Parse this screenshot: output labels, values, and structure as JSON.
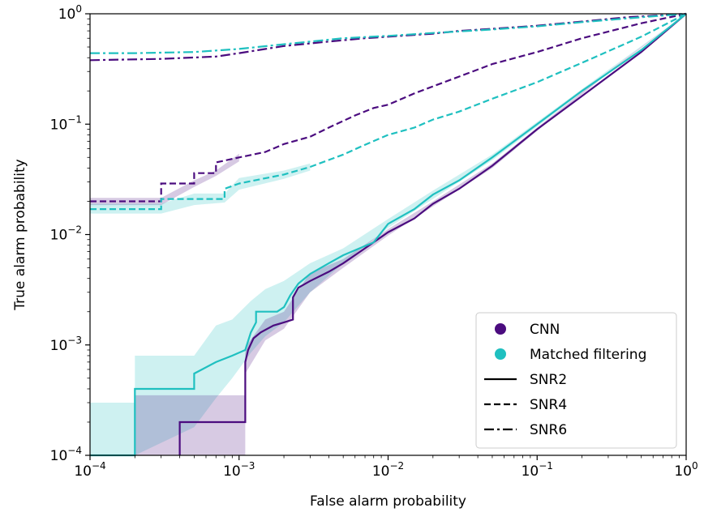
{
  "chart_data": {
    "type": "line",
    "xscale": "log",
    "yscale": "log",
    "xlim": [
      0.0001,
      1
    ],
    "ylim": [
      0.0001,
      1
    ],
    "xlabel": "False alarm probability",
    "ylabel": "True alarm probability",
    "xticks": [
      {
        "value": 0.0001,
        "base": "10",
        "exp": "−4"
      },
      {
        "value": 0.001,
        "base": "10",
        "exp": "−3"
      },
      {
        "value": 0.01,
        "base": "10",
        "exp": "−2"
      },
      {
        "value": 0.1,
        "base": "10",
        "exp": "−1"
      },
      {
        "value": 1,
        "base": "10",
        "exp": "0"
      }
    ],
    "yticks": [
      {
        "value": 0.0001,
        "base": "10",
        "exp": "−4"
      },
      {
        "value": 0.001,
        "base": "10",
        "exp": "−3"
      },
      {
        "value": 0.01,
        "base": "10",
        "exp": "−2"
      },
      {
        "value": 0.1,
        "base": "10",
        "exp": "−1"
      },
      {
        "value": 1,
        "base": "10",
        "exp": "0"
      }
    ],
    "colors": {
      "CNN": "#4b0c7f",
      "Matched filtering": "#1fc0c0"
    },
    "legend": {
      "placement": "lower-right",
      "entries": [
        {
          "label": "CNN",
          "kind": "marker",
          "method": "CNN"
        },
        {
          "label": "Matched filtering",
          "kind": "marker",
          "method": "Matched filtering"
        },
        {
          "label": "SNR2",
          "kind": "line",
          "style": "solid"
        },
        {
          "label": "SNR4",
          "kind": "line",
          "style": "dashed"
        },
        {
          "label": "SNR6",
          "kind": "line",
          "style": "dashdot"
        }
      ]
    },
    "series": [
      {
        "name": "CNN SNR2",
        "method": "CNN",
        "snr": "SNR2",
        "style": "solid",
        "x": [
          0.0004,
          0.0004,
          0.0011,
          0.0011,
          0.00115,
          0.00125,
          0.0014,
          0.0017,
          0.002,
          0.0023,
          0.0023,
          0.0025,
          0.003,
          0.004,
          0.005,
          0.007,
          0.01,
          0.015,
          0.02,
          0.03,
          0.05,
          0.1,
          0.2,
          0.5,
          1
        ],
        "y": [
          0.0001,
          0.0002,
          0.0002,
          0.0007,
          0.0009,
          0.00115,
          0.0013,
          0.0015,
          0.0016,
          0.0017,
          0.0027,
          0.0033,
          0.0038,
          0.0046,
          0.0055,
          0.0075,
          0.0105,
          0.014,
          0.019,
          0.026,
          0.042,
          0.09,
          0.18,
          0.45,
          1
        ]
      },
      {
        "name": "MF SNR2",
        "method": "Matched filtering",
        "snr": "SNR2",
        "style": "solid",
        "x": [
          0.0001,
          0.0002,
          0.0002,
          0.0005,
          0.0005,
          0.0007,
          0.0009,
          0.0011,
          0.0012,
          0.0013,
          0.0013,
          0.0015,
          0.0018,
          0.002,
          0.0022,
          0.0025,
          0.003,
          0.004,
          0.005,
          0.006,
          0.008,
          0.01,
          0.015,
          0.02,
          0.03,
          0.05,
          0.1,
          0.2,
          0.5,
          1
        ],
        "y": [
          0.0001,
          0.0001,
          0.0004,
          0.0004,
          0.00055,
          0.0007,
          0.0008,
          0.0009,
          0.0013,
          0.0016,
          0.002,
          0.002,
          0.002,
          0.0022,
          0.0028,
          0.0036,
          0.0044,
          0.0055,
          0.0065,
          0.0072,
          0.0085,
          0.0125,
          0.017,
          0.023,
          0.031,
          0.05,
          0.1,
          0.2,
          0.47,
          1
        ]
      },
      {
        "name": "CNN SNR4",
        "method": "CNN",
        "snr": "SNR4",
        "style": "dashed",
        "x": [
          0.0001,
          0.0003,
          0.0003,
          0.0005,
          0.0005,
          0.0007,
          0.0007,
          0.001,
          0.0015,
          0.002,
          0.003,
          0.004,
          0.006,
          0.008,
          0.01,
          0.015,
          0.02,
          0.03,
          0.05,
          0.1,
          0.2,
          0.5,
          1
        ],
        "y": [
          0.02,
          0.02,
          0.029,
          0.029,
          0.036,
          0.036,
          0.045,
          0.05,
          0.056,
          0.066,
          0.077,
          0.093,
          0.12,
          0.14,
          0.15,
          0.19,
          0.22,
          0.27,
          0.35,
          0.45,
          0.6,
          0.82,
          1
        ]
      },
      {
        "name": "MF SNR4",
        "method": "Matched filtering",
        "snr": "SNR4",
        "style": "dashed",
        "x": [
          0.0001,
          0.0003,
          0.0003,
          0.0008,
          0.0008,
          0.001,
          0.002,
          0.003,
          0.005,
          0.007,
          0.01,
          0.015,
          0.02,
          0.03,
          0.05,
          0.1,
          0.2,
          0.5,
          1
        ],
        "y": [
          0.017,
          0.017,
          0.021,
          0.021,
          0.026,
          0.029,
          0.035,
          0.041,
          0.053,
          0.065,
          0.08,
          0.093,
          0.11,
          0.13,
          0.17,
          0.24,
          0.36,
          0.62,
          1
        ]
      },
      {
        "name": "CNN SNR6",
        "method": "CNN",
        "snr": "SNR6",
        "style": "dashdot",
        "x": [
          0.0001,
          0.0003,
          0.0007,
          0.001,
          0.002,
          0.004,
          0.007,
          0.01,
          0.02,
          0.03,
          0.05,
          0.1,
          0.2,
          0.4,
          1
        ],
        "y": [
          0.38,
          0.39,
          0.41,
          0.44,
          0.51,
          0.56,
          0.6,
          0.62,
          0.66,
          0.7,
          0.73,
          0.78,
          0.85,
          0.93,
          1
        ]
      },
      {
        "name": "MF SNR6",
        "method": "Matched filtering",
        "snr": "SNR6",
        "style": "dashdot",
        "x": [
          0.0001,
          0.0002,
          0.0005,
          0.001,
          0.002,
          0.005,
          0.01,
          0.02,
          0.05,
          0.1,
          0.2,
          0.5,
          1
        ],
        "y": [
          0.44,
          0.44,
          0.45,
          0.48,
          0.53,
          0.6,
          0.63,
          0.67,
          0.72,
          0.77,
          0.84,
          0.93,
          1
        ]
      }
    ],
    "bands": [
      {
        "name": "MF SNR2 band",
        "method": "Matched filtering",
        "x": [
          0.0001,
          0.0002,
          0.0002,
          0.0005,
          0.0007,
          0.0009,
          0.0012,
          0.0015,
          0.002,
          0.003,
          0.005,
          0.01,
          0.02,
          0.05,
          0.1,
          0.3,
          1
        ],
        "lower": [
          0.0001,
          0.0001,
          0.0001,
          0.00018,
          0.00033,
          0.0005,
          0.00085,
          0.0012,
          0.0016,
          0.003,
          0.0055,
          0.0115,
          0.021,
          0.047,
          0.095,
          0.3,
          1
        ],
        "upper": [
          0.0003,
          0.0003,
          0.0008,
          0.0008,
          0.0015,
          0.0017,
          0.0025,
          0.0032,
          0.0038,
          0.0055,
          0.0075,
          0.0138,
          0.025,
          0.053,
          0.105,
          0.31,
          1
        ]
      },
      {
        "name": "CNN SNR2 band",
        "method": "CNN",
        "x": [
          0.0002,
          0.0002,
          0.0006,
          0.0006,
          0.0011,
          0.0011,
          0.0015,
          0.002,
          0.003,
          0.005,
          0.01,
          0.02,
          0.05,
          0.1,
          0.3,
          1
        ],
        "lower": [
          0.0001,
          0.0001,
          0.0001,
          0.0001,
          0.0001,
          0.00055,
          0.0011,
          0.0014,
          0.003,
          0.005,
          0.0098,
          0.018,
          0.04,
          0.087,
          0.29,
          1
        ],
        "upper": [
          0.0002,
          0.00035,
          0.00035,
          0.00035,
          0.00035,
          0.00095,
          0.0017,
          0.002,
          0.0045,
          0.006,
          0.0112,
          0.02,
          0.044,
          0.093,
          0.3,
          1
        ]
      },
      {
        "name": "CNN SNR4 band",
        "method": "CNN",
        "x": [
          0.0001,
          0.0003,
          0.0005,
          0.0007,
          0.001
        ],
        "lower": [
          0.0185,
          0.0185,
          0.027,
          0.034,
          0.046
        ],
        "upper": [
          0.0215,
          0.0215,
          0.031,
          0.038,
          0.054
        ]
      },
      {
        "name": "MF SNR4 band",
        "method": "Matched filtering",
        "x": [
          0.0001,
          0.0003,
          0.0005,
          0.0008,
          0.001,
          0.002,
          0.003
        ],
        "lower": [
          0.0155,
          0.0155,
          0.0185,
          0.0195,
          0.0255,
          0.032,
          0.038
        ],
        "upper": [
          0.019,
          0.019,
          0.0235,
          0.0235,
          0.0325,
          0.038,
          0.044
        ]
      }
    ]
  }
}
